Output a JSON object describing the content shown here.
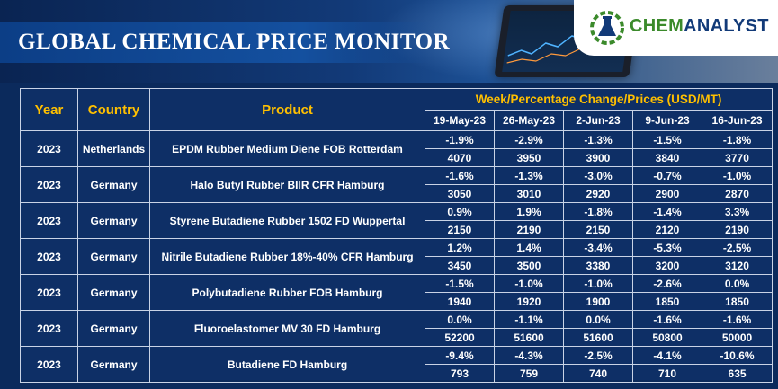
{
  "header": {
    "title": "GLOBAL CHEMICAL PRICE MONITOR",
    "logo": {
      "part1": "CHEM",
      "part2": "ANALYST"
    }
  },
  "table": {
    "columns": {
      "year": "Year",
      "country": "Country",
      "product": "Product"
    },
    "week_header": "Week/Percentage Change/Prices (USD/MT)",
    "dates": [
      "19-May-23",
      "26-May-23",
      "2-Jun-23",
      "9-Jun-23",
      "16-Jun-23"
    ],
    "rows": [
      {
        "year": "2023",
        "country": "Netherlands",
        "product": "EPDM Rubber Medium Diene FOB Rotterdam",
        "changes": [
          "-1.9%",
          "-2.9%",
          "-1.3%",
          "-1.5%",
          "-1.8%"
        ],
        "prices": [
          "4070",
          "3950",
          "3900",
          "3840",
          "3770"
        ]
      },
      {
        "year": "2023",
        "country": "Germany",
        "product": "Halo Butyl Rubber BIIR CFR Hamburg",
        "changes": [
          "-1.6%",
          "-1.3%",
          "-3.0%",
          "-0.7%",
          "-1.0%"
        ],
        "prices": [
          "3050",
          "3010",
          "2920",
          "2900",
          "2870"
        ]
      },
      {
        "year": "2023",
        "country": "Germany",
        "product": "Styrene Butadiene Rubber 1502 FD Wuppertal",
        "changes": [
          "0.9%",
          "1.9%",
          "-1.8%",
          "-1.4%",
          "3.3%"
        ],
        "prices": [
          "2150",
          "2190",
          "2150",
          "2120",
          "2190"
        ]
      },
      {
        "year": "2023",
        "country": "Germany",
        "product": "Nitrile Butadiene Rubber 18%-40% CFR Hamburg",
        "changes": [
          "1.2%",
          "1.4%",
          "-3.4%",
          "-5.3%",
          "-2.5%"
        ],
        "prices": [
          "3450",
          "3500",
          "3380",
          "3200",
          "3120"
        ]
      },
      {
        "year": "2023",
        "country": "Germany",
        "product": "Polybutadiene Rubber FOB Hamburg",
        "changes": [
          "-1.5%",
          "-1.0%",
          "-1.0%",
          "-2.6%",
          "0.0%"
        ],
        "prices": [
          "1940",
          "1920",
          "1900",
          "1850",
          "1850"
        ]
      },
      {
        "year": "2023",
        "country": "Germany",
        "product": "Fluoroelastomer MV 30 FD Hamburg",
        "changes": [
          "0.0%",
          "-1.1%",
          "0.0%",
          "-1.6%",
          "-1.6%"
        ],
        "prices": [
          "52200",
          "51600",
          "51600",
          "50800",
          "50000"
        ]
      },
      {
        "year": "2023",
        "country": "Germany",
        "product": "Butadiene FD Hamburg",
        "changes": [
          "-9.4%",
          "-4.3%",
          "-2.5%",
          "-4.1%",
          "-10.6%"
        ],
        "prices": [
          "793",
          "759",
          "740",
          "710",
          "635"
        ]
      }
    ]
  },
  "colors": {
    "background": "#0b2a5c",
    "header_accent": "#ffc000",
    "brand_green": "#3b8a2b",
    "brand_blue": "#123a78"
  }
}
